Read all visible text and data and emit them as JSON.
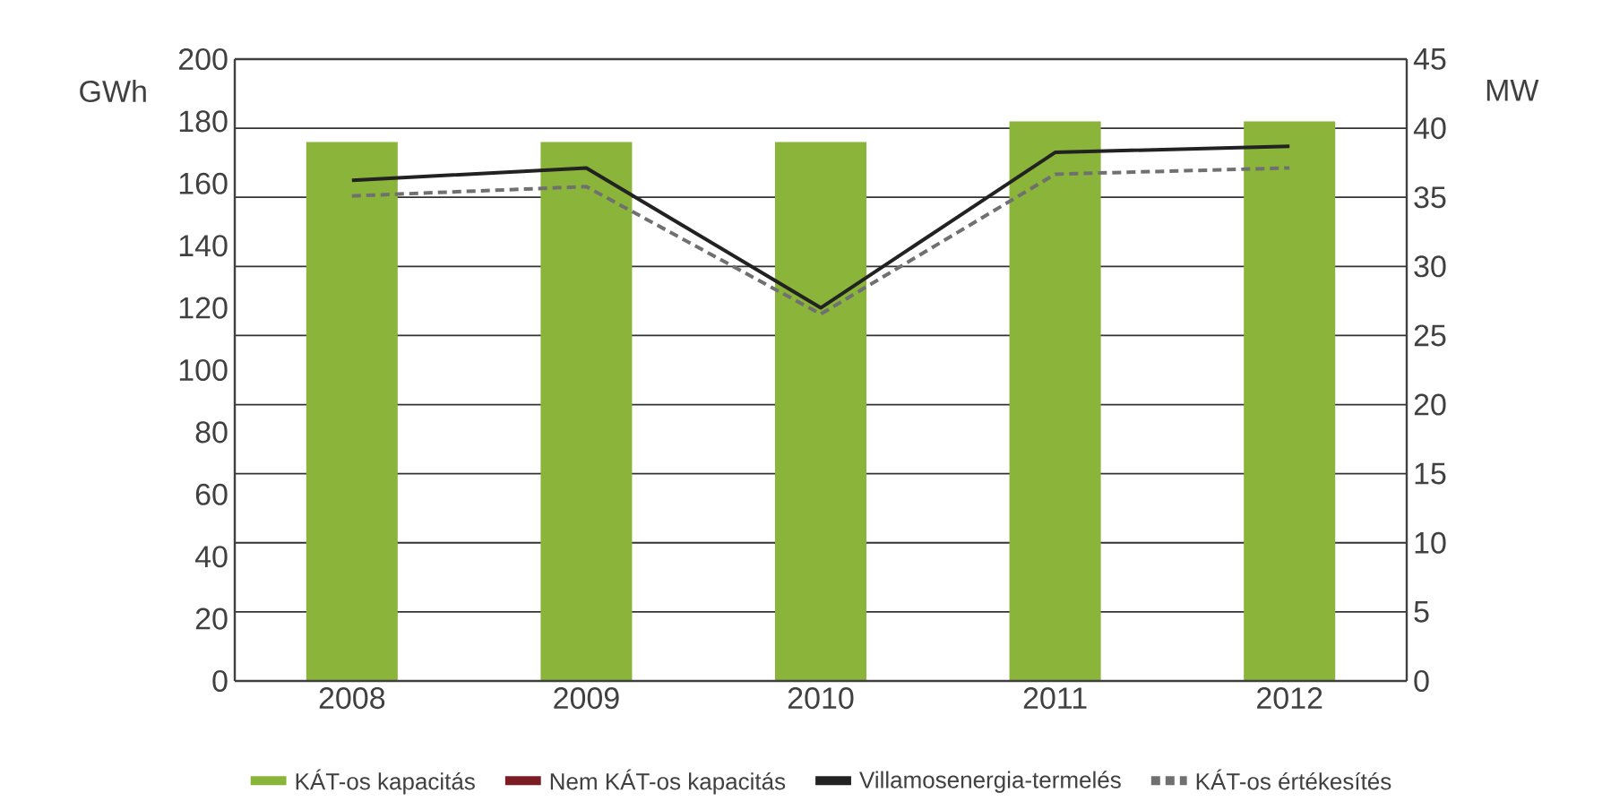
{
  "chart_data": {
    "type": "bar",
    "categories": [
      "2008",
      "2009",
      "2010",
      "2011",
      "2012"
    ],
    "ylabel": "GWh",
    "y2label": "MW",
    "ylim": [
      0,
      200
    ],
    "yticks": [
      0,
      20,
      40,
      60,
      80,
      100,
      120,
      140,
      160,
      180,
      200
    ],
    "y2lim": [
      0,
      45
    ],
    "y2ticks": [
      0,
      5,
      10,
      15,
      20,
      25,
      30,
      35,
      40,
      45
    ],
    "grid": "y",
    "legend": "bottom",
    "series": [
      {
        "name": "KÁT-os kapacitás",
        "axis": "y2",
        "color": "#8ab53a",
        "values": [
          39.0,
          39.0,
          39.0,
          40.5,
          40.5
        ]
      },
      {
        "name": "Nem KÁT-os kapacitás",
        "axis": "y2",
        "color": "#7b1c24",
        "values": [
          0,
          0,
          0,
          0,
          0
        ]
      },
      {
        "name": "Villamosenergia-termelés",
        "type": "line",
        "color": "#222222",
        "line_style": "solid",
        "values": [
          161,
          165,
          120,
          170,
          172
        ]
      },
      {
        "name": "KÁT-os értékesítés",
        "type": "line",
        "color": "#707070",
        "line_style": "dashed",
        "values": [
          156,
          159,
          118,
          163,
          165
        ]
      }
    ]
  }
}
